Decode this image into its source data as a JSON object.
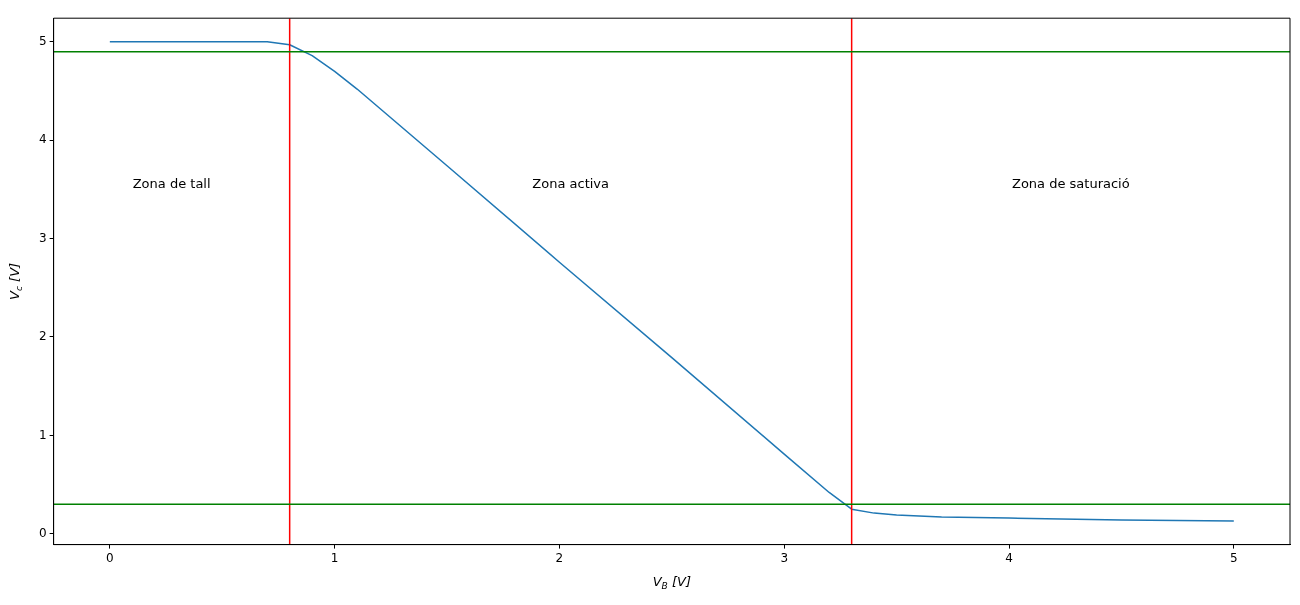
{
  "chart_data": {
    "type": "line",
    "xlabel": "V$_{B}$ [V]",
    "ylabel": "V$_{c}$ [V]",
    "x": [
      0,
      0.7,
      0.8,
      0.9,
      1.0,
      1.1,
      1.5,
      2.0,
      2.5,
      3.0,
      3.2,
      3.3,
      3.4,
      3.5,
      3.7,
      4.0,
      4.5,
      5.0
    ],
    "series": [
      {
        "color": "#1f77b4",
        "values": [
          5,
          5,
          4.97,
          4.86,
          4.7,
          4.52,
          3.74,
          2.76,
          1.79,
          0.81,
          0.42,
          0.25,
          0.21,
          0.19,
          0.17,
          0.16,
          0.14,
          0.13
        ]
      }
    ],
    "xlim": [
      -0.25,
      5.25
    ],
    "xticks": [
      0,
      1,
      2,
      3,
      4,
      5
    ],
    "ylim": [
      -0.11,
      5.24
    ],
    "yticks": [
      0,
      1,
      2,
      3,
      4,
      5
    ],
    "ref_lines": [
      {
        "axis": "x",
        "value": 0.8,
        "color": "#ff0000"
      },
      {
        "axis": "x",
        "value": 3.3,
        "color": "#ff0000"
      },
      {
        "axis": "y",
        "value": 4.9,
        "color": "#008000"
      },
      {
        "axis": "y",
        "value": 0.3,
        "color": "#008000"
      }
    ],
    "annotations": [
      "Zona de tall",
      "Zona activa",
      "Zona de saturació"
    ],
    "grid": false,
    "legend": false,
    "marker": "none",
    "line_style": "solid"
  }
}
